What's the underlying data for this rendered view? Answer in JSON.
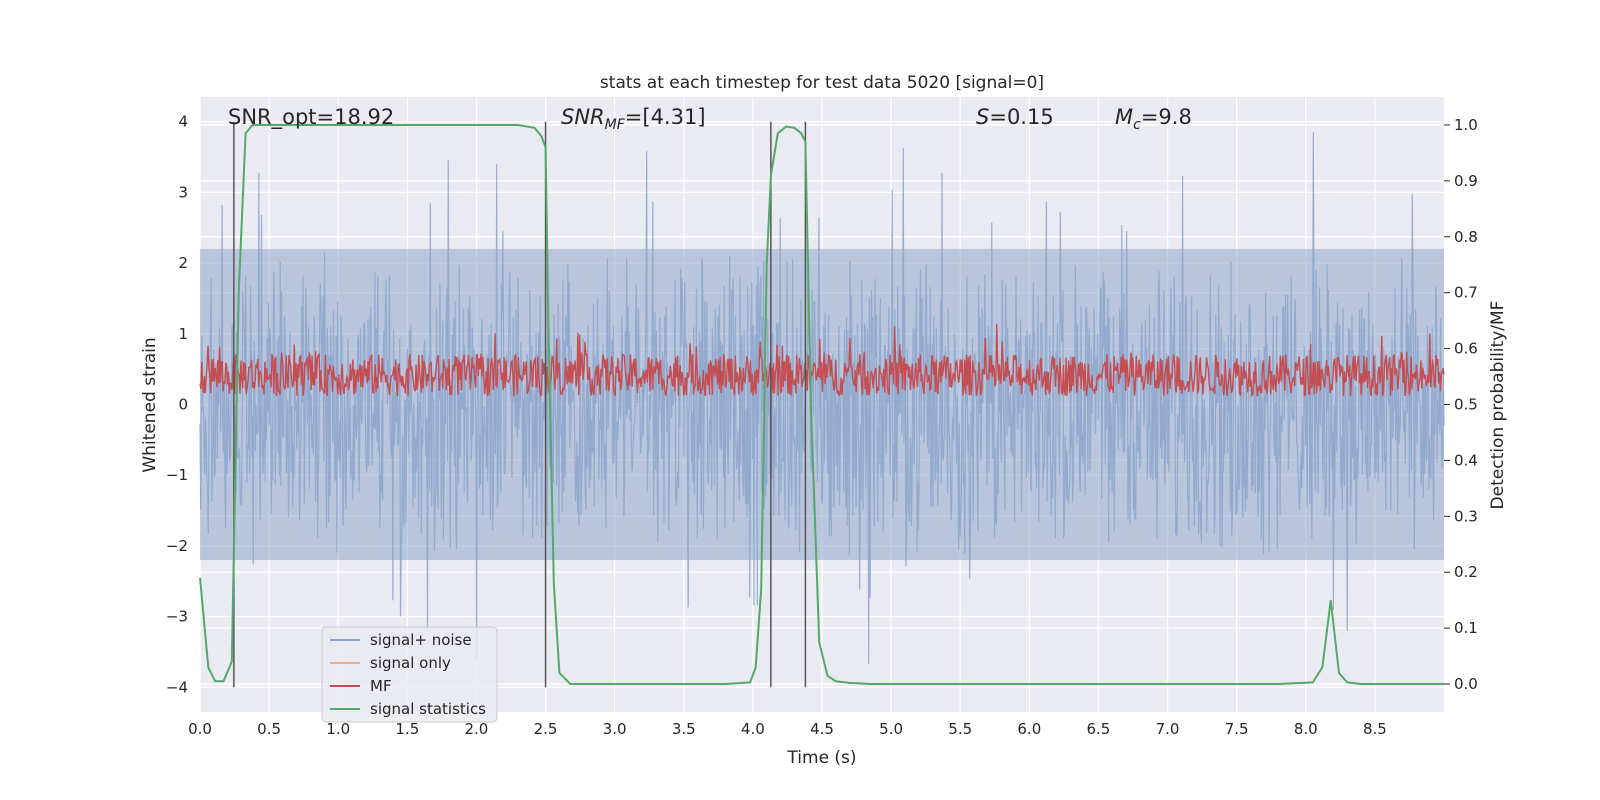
{
  "chart_data": {
    "type": "line",
    "title": "stats at each timestep for test data 5020 [signal=0]",
    "xlabel": "Time (s)",
    "ylabel": "Whitened strain",
    "ylabel_right": "Detection probability/MF",
    "xlim": [
      0,
      9
    ],
    "ylim": [
      -4.35,
      4.35
    ],
    "ylim_right": [
      -0.05,
      1.05
    ],
    "xticks": [
      0.0,
      0.5,
      1.0,
      1.5,
      2.0,
      2.5,
      3.0,
      3.5,
      4.0,
      4.5,
      5.0,
      5.5,
      6.0,
      6.5,
      7.0,
      7.5,
      8.0,
      8.5
    ],
    "xtick_labels": [
      "0.0",
      "0.5",
      "1.0",
      "1.5",
      "2.0",
      "2.5",
      "3.0",
      "3.5",
      "4.0",
      "4.5",
      "5.0",
      "5.5",
      "6.0",
      "6.5",
      "7.0",
      "7.5",
      "8.0",
      "8.5"
    ],
    "yticks": [
      4,
      3,
      2,
      1,
      0,
      -1,
      -2,
      -3,
      -4
    ],
    "ytick_labels": [
      "4",
      "3",
      "2",
      "1",
      "0",
      "−1",
      "−2",
      "−3",
      "−4"
    ],
    "yticks_right": [
      1.0,
      0.9,
      0.8,
      0.7,
      0.6,
      0.5,
      0.4,
      0.3,
      0.2,
      0.1,
      0.0
    ],
    "ytick_labels_right": [
      "1.0",
      "0.9",
      "0.8",
      "0.7",
      "0.6",
      "0.5",
      "0.4",
      "0.3",
      "0.2",
      "0.1",
      "0.0"
    ],
    "annotations": {
      "snr_opt": "SNR_opt=18.92",
      "snr_mf_main": "SNR",
      "snr_mf_sub": "MF",
      "snr_mf_value": "=[4.31]",
      "s_symbol": "S",
      "s_value": "=0.15",
      "mc_symbol": "M",
      "mc_sub": "c",
      "mc_value": "=9.8"
    },
    "vertical_lines_s": [
      0.245,
      2.5,
      4.13,
      4.38
    ],
    "series": [
      {
        "name": "signal+ noise",
        "axis": "left",
        "color": "#8fa6cc",
        "description_values": "noise envelope approx ±2.2, peaks to ±4"
      },
      {
        "name": "signal only",
        "axis": "left",
        "color": "#f0a98c",
        "values": []
      },
      {
        "name": "MF",
        "axis": "right",
        "color": "#c44e52",
        "baseline": 0.5,
        "range": [
          0.5,
          0.66
        ]
      },
      {
        "name": "signal statistics",
        "axis": "right",
        "color": "#55a868",
        "x": [
          0.0,
          0.06,
          0.11,
          0.17,
          0.23,
          0.28,
          0.33,
          0.38,
          0.45,
          0.6,
          1.0,
          1.5,
          2.0,
          2.3,
          2.42,
          2.47,
          2.5,
          2.52,
          2.56,
          2.6,
          2.68,
          2.8,
          3.2,
          3.8,
          3.98,
          4.02,
          4.06,
          4.1,
          4.13,
          4.18,
          4.24,
          4.3,
          4.35,
          4.38,
          4.42,
          4.48,
          4.54,
          4.6,
          4.7,
          4.85,
          5.2,
          6.0,
          7.0,
          7.8,
          8.05,
          8.12,
          8.18,
          8.24,
          8.3,
          8.4,
          8.6,
          8.8,
          9.0
        ],
        "y": [
          0.19,
          0.03,
          0.005,
          0.005,
          0.04,
          0.7,
          0.985,
          1.0,
          1.0,
          1.0,
          1.0,
          1.0,
          1.0,
          1.0,
          0.995,
          0.98,
          0.96,
          0.65,
          0.18,
          0.02,
          0.0,
          0.0,
          0.0,
          0.0,
          0.003,
          0.03,
          0.17,
          0.75,
          0.91,
          0.985,
          0.997,
          0.995,
          0.985,
          0.97,
          0.5,
          0.075,
          0.015,
          0.005,
          0.002,
          0.0,
          0.0,
          0.0,
          0.0,
          0.0,
          0.003,
          0.03,
          0.15,
          0.02,
          0.003,
          0.0,
          0.0,
          0.0,
          0.0
        ]
      }
    ],
    "legend": [
      "signal+ noise",
      "signal only",
      "MF",
      "signal statistics"
    ],
    "legend_loc": "lower-left",
    "grid": true
  }
}
